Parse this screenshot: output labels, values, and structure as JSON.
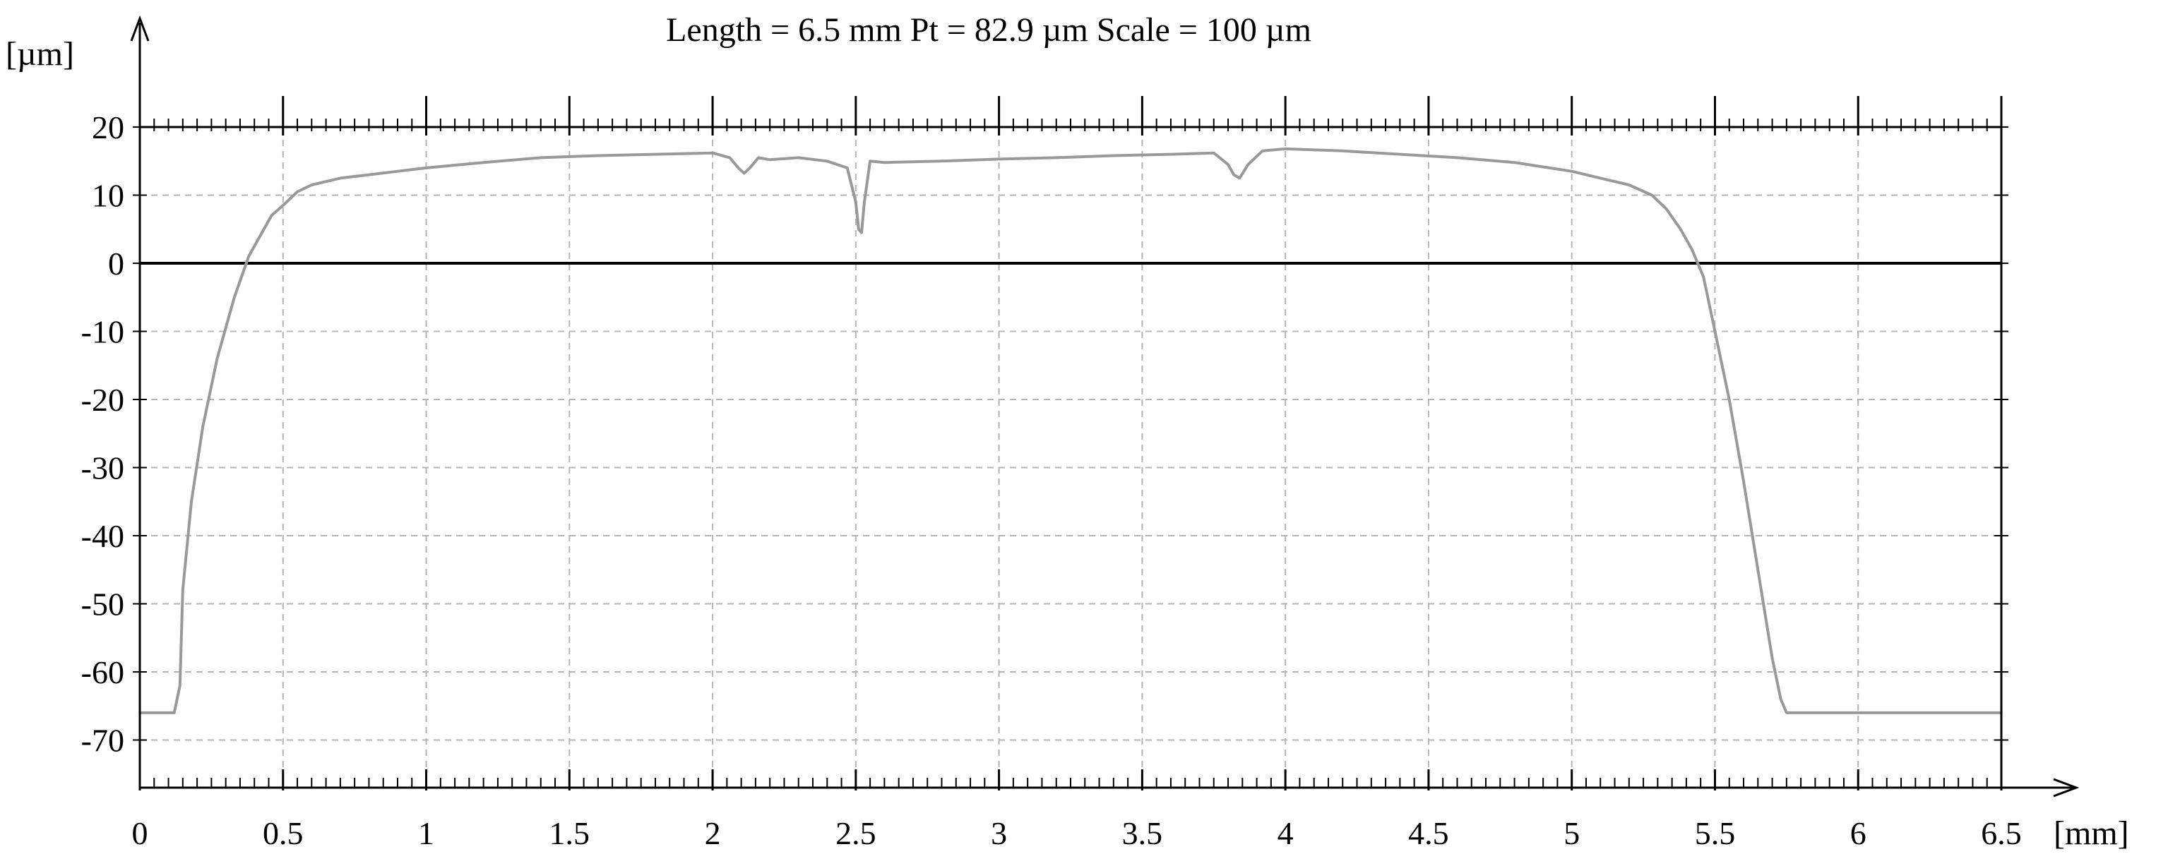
{
  "chart_data": {
    "type": "line",
    "title": "Length = 6.5 mm Pt = 82.9 µm Scale = 100 µm",
    "xlabel": "[mm]",
    "ylabel": "[µm]",
    "xlim": [
      0,
      6.5
    ],
    "ylim": [
      -80,
      20
    ],
    "x_ticks": [
      0,
      0.5,
      1,
      1.5,
      2,
      2.5,
      3,
      3.5,
      4,
      4.5,
      5,
      5.5,
      6,
      6.5
    ],
    "x_tick_labels": [
      "0",
      "0.5",
      "1",
      "1.5",
      "2",
      "2.5",
      "3",
      "3.5",
      "4",
      "4.5",
      "5",
      "5.5",
      "6",
      "6.5"
    ],
    "y_ticks": [
      20,
      10,
      0,
      -10,
      -20,
      -30,
      -40,
      -50,
      -60,
      -70
    ],
    "y_tick_labels": [
      "20",
      "10",
      "0",
      "-10",
      "-20",
      "-30",
      "-40",
      "-50",
      "-60",
      "-70"
    ],
    "grid": true,
    "reference_lines": [
      {
        "name": "zero-line",
        "y": 0
      },
      {
        "name": "top-reference-line",
        "y": 20
      }
    ],
    "series": [
      {
        "name": "profile",
        "color": "#999999",
        "x": [
          0,
          0.12,
          0.14,
          0.15,
          0.18,
          0.22,
          0.27,
          0.33,
          0.38,
          0.42,
          0.46,
          0.5,
          0.55,
          0.6,
          0.7,
          0.8,
          0.9,
          1.0,
          1.2,
          1.4,
          1.6,
          1.8,
          2.0,
          2.06,
          2.09,
          2.11,
          2.13,
          2.16,
          2.2,
          2.3,
          2.4,
          2.47,
          2.5,
          2.51,
          2.52,
          2.53,
          2.55,
          2.6,
          2.8,
          3.0,
          3.2,
          3.4,
          3.6,
          3.75,
          3.8,
          3.82,
          3.84,
          3.87,
          3.92,
          4.0,
          4.2,
          4.4,
          4.6,
          4.8,
          5.0,
          5.1,
          5.2,
          5.28,
          5.33,
          5.38,
          5.42,
          5.46,
          5.5,
          5.55,
          5.6,
          5.65,
          5.7,
          5.73,
          5.75,
          5.9,
          6.1,
          6.3,
          6.5
        ],
        "y": [
          -66,
          -66,
          -62,
          -48,
          -35,
          -24,
          -14,
          -5,
          1,
          4,
          7,
          8.5,
          10.5,
          11.5,
          12.5,
          13,
          13.5,
          14,
          14.8,
          15.5,
          15.8,
          16,
          16.2,
          15.5,
          14,
          13.2,
          14,
          15.5,
          15.2,
          15.5,
          15,
          14,
          9,
          5,
          4.5,
          9,
          15,
          14.8,
          15,
          15.3,
          15.5,
          15.8,
          16,
          16.2,
          14.5,
          13,
          12.5,
          14.5,
          16.5,
          16.8,
          16.5,
          16,
          15.5,
          14.8,
          13.5,
          12.5,
          11.5,
          10,
          8,
          5,
          2,
          -2,
          -10,
          -20,
          -32,
          -45,
          -58,
          -64,
          -66,
          -66,
          -66,
          -66,
          -66
        ]
      }
    ]
  }
}
